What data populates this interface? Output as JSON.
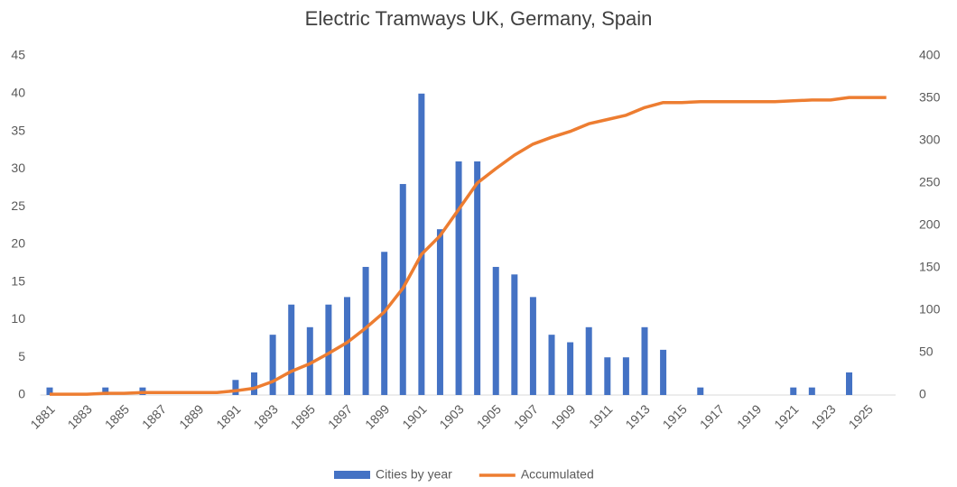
{
  "chart_data": {
    "type": "bar-line",
    "title": "Electric Tramways UK, Germany, Spain",
    "categories": [
      "1881",
      null,
      "1883",
      null,
      "1885",
      null,
      "1887",
      null,
      "1889",
      null,
      "1891",
      null,
      "1893",
      null,
      "1895",
      null,
      "1897",
      null,
      "1899",
      null,
      "1901",
      null,
      "1903",
      null,
      "1905",
      null,
      "1907",
      null,
      "1909",
      null,
      "1911",
      null,
      "1913",
      null,
      "1915",
      null,
      "1917",
      null,
      "1919",
      null,
      "1921",
      null,
      "1923",
      null,
      "1925",
      null
    ],
    "series": [
      {
        "name": "Cities by year",
        "color": "#4472c4",
        "kind": "bar",
        "values": [
          1,
          0,
          0,
          1,
          0,
          1,
          0,
          0,
          0,
          0,
          2,
          3,
          8,
          12,
          9,
          12,
          13,
          17,
          19,
          28,
          40,
          22,
          31,
          31,
          17,
          16,
          13,
          8,
          7,
          9,
          5,
          5,
          9,
          6,
          0,
          1,
          0,
          0,
          0,
          0,
          1,
          1,
          0,
          3,
          0,
          0
        ]
      },
      {
        "name": "Accumulated",
        "color": "#ed7d31",
        "kind": "line",
        "axis": "y2",
        "values": [
          1,
          1,
          1,
          2,
          2,
          3,
          3,
          3,
          3,
          3,
          5,
          8,
          16,
          28,
          37,
          49,
          62,
          79,
          98,
          126,
          166,
          188,
          219,
          250,
          267,
          283,
          296,
          304,
          311,
          320,
          325,
          330,
          339,
          345,
          345,
          346,
          346,
          346,
          346,
          346,
          347,
          348,
          348,
          351,
          351,
          351
        ]
      }
    ],
    "ylim": [
      0,
      45
    ],
    "yticks": [
      0,
      5,
      10,
      15,
      20,
      25,
      30,
      35,
      40,
      45
    ],
    "y2lim": [
      0,
      400
    ],
    "y2ticks": [
      0,
      50,
      100,
      150,
      200,
      250,
      300,
      350,
      400
    ],
    "grid": false,
    "legend": "bottom"
  }
}
